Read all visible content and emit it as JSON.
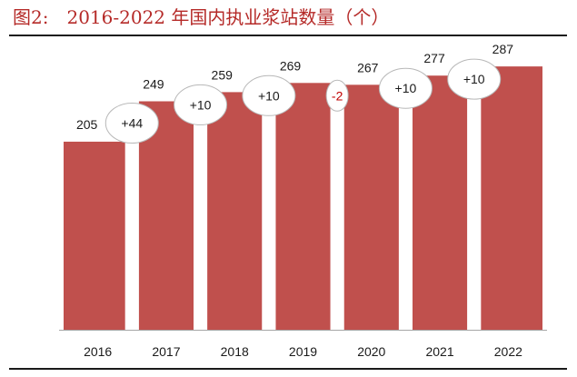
{
  "figure": {
    "label": "图2:",
    "title": "2016-2022 年国内执业浆站数量（个）"
  },
  "chart_data": {
    "type": "bar",
    "categories": [
      "2016",
      "2017",
      "2018",
      "2019",
      "2020",
      "2021",
      "2022"
    ],
    "values": [
      205,
      249,
      259,
      269,
      267,
      277,
      287
    ],
    "value_labels": [
      "205",
      "249",
      "259",
      "269",
      "267",
      "277",
      "287"
    ],
    "changes": [
      "+44",
      "+10",
      "+10",
      "-2",
      "+10",
      "+10"
    ],
    "ylim": [
      0,
      300
    ],
    "grid": false,
    "legend": "none",
    "bar_color": "#c0504d",
    "negative_change_color": "#c00000"
  }
}
